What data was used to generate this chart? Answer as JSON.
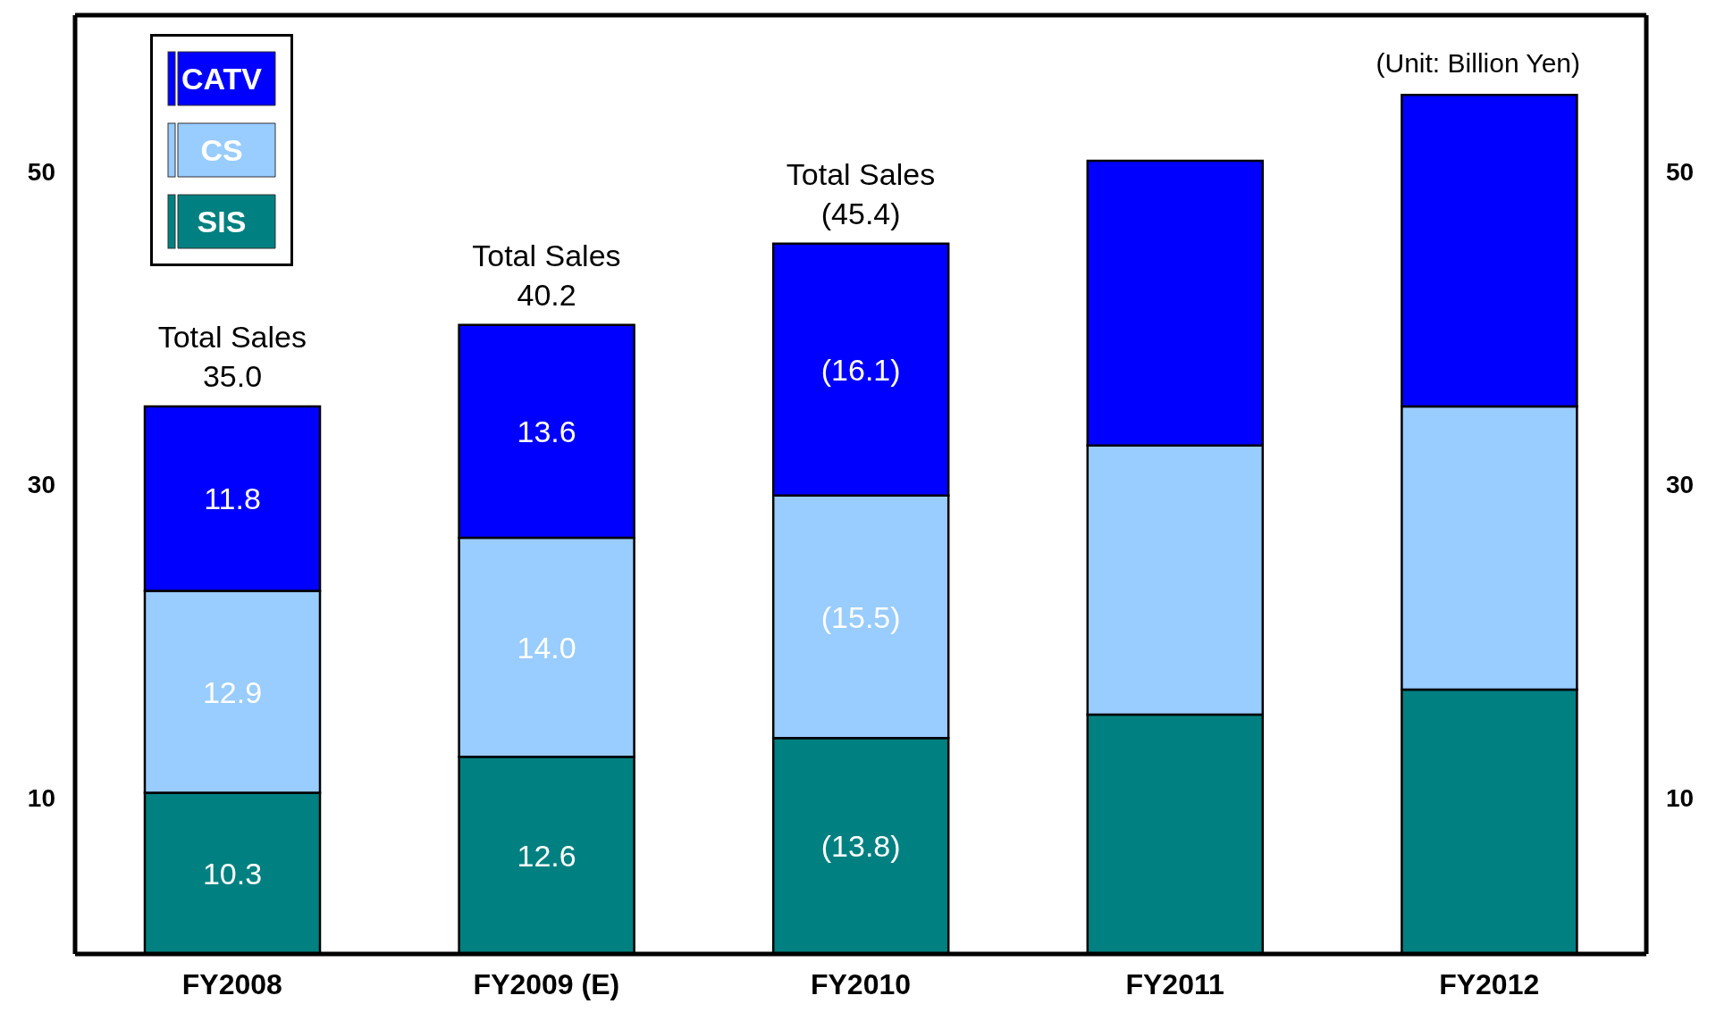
{
  "chart_data": {
    "type": "bar",
    "stacked": true,
    "categories": [
      "FY2008",
      "FY2009 (E)",
      "FY2010",
      "FY2011",
      "FY2012"
    ],
    "series": [
      {
        "name": "SIS",
        "color": "#008080",
        "values": [
          10.3,
          12.6,
          13.8,
          15.3,
          16.9
        ],
        "value_labels": [
          "10.3",
          "12.6",
          "(13.8)",
          null,
          null
        ]
      },
      {
        "name": "CS",
        "color": "#99ccff",
        "values": [
          12.9,
          14.0,
          15.5,
          17.2,
          18.1
        ],
        "value_labels": [
          "12.9",
          "14.0",
          "(15.5)",
          null,
          null
        ]
      },
      {
        "name": "CATV",
        "color": "#0000ff",
        "values": [
          11.8,
          13.6,
          16.1,
          18.2,
          19.9
        ],
        "value_labels": [
          "11.8",
          "13.6",
          "(16.1)",
          null,
          null
        ]
      }
    ],
    "totals": [
      "35.0",
      "40.2",
      "(45.4)",
      null,
      null
    ],
    "annotations": [
      {
        "text": "Total Sales",
        "x": "FY2008",
        "y": 35.0
      },
      {
        "text": "Total Sales",
        "x": "FY2009 (E)",
        "y": 40.2
      },
      {
        "text": "Total Sales",
        "x": "FY2010",
        "y": 45.4
      },
      "(Unit: Billion Yen)"
    ],
    "ylim": [
      0,
      60
    ],
    "yticks": [
      10,
      30,
      50
    ],
    "y2lim": [
      0,
      60
    ],
    "y2ticks": [
      10,
      30,
      50
    ],
    "grid": false,
    "legend": "top left"
  }
}
